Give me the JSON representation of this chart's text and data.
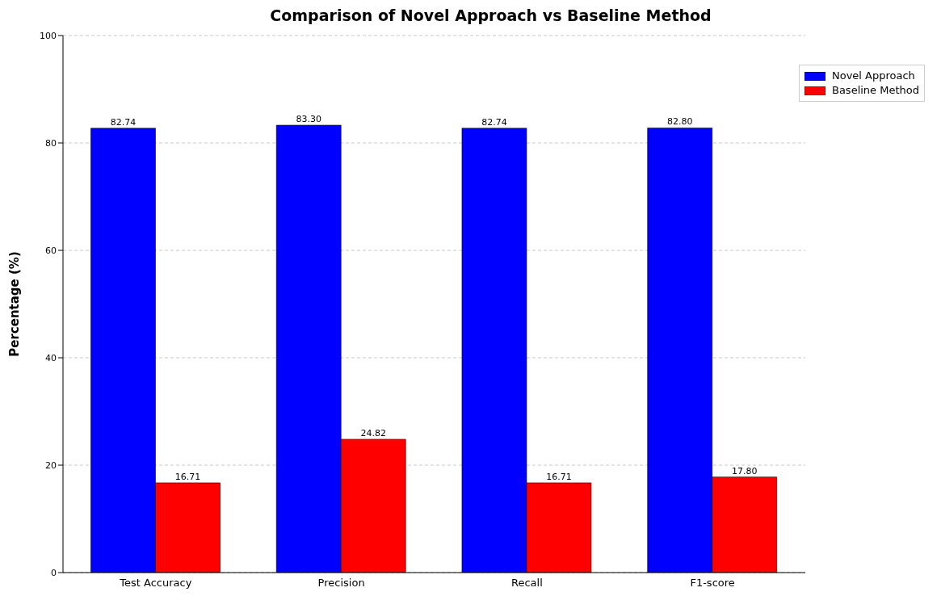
{
  "chart_data": {
    "type": "bar",
    "title": "Comparison of Novel Approach vs Baseline Method",
    "ylabel": "Percentage (%)",
    "categories": [
      "Test Accuracy",
      "Precision",
      "Recall",
      "F1-score"
    ],
    "series": [
      {
        "name": "Novel Approach",
        "color": "#0000ff",
        "values": [
          82.74,
          83.3,
          82.74,
          82.8
        ],
        "value_labels": [
          "82.74",
          "83.30",
          "82.74",
          "82.80"
        ]
      },
      {
        "name": "Baseline Method",
        "color": "#ff0000",
        "values": [
          16.71,
          24.82,
          16.71,
          17.8
        ],
        "value_labels": [
          "16.71",
          "24.82",
          "16.71",
          "17.80"
        ]
      }
    ],
    "ylim": [
      0,
      100
    ],
    "yticks": [
      0,
      20,
      40,
      60,
      80,
      100
    ],
    "grid": "y",
    "legend": "top right"
  }
}
